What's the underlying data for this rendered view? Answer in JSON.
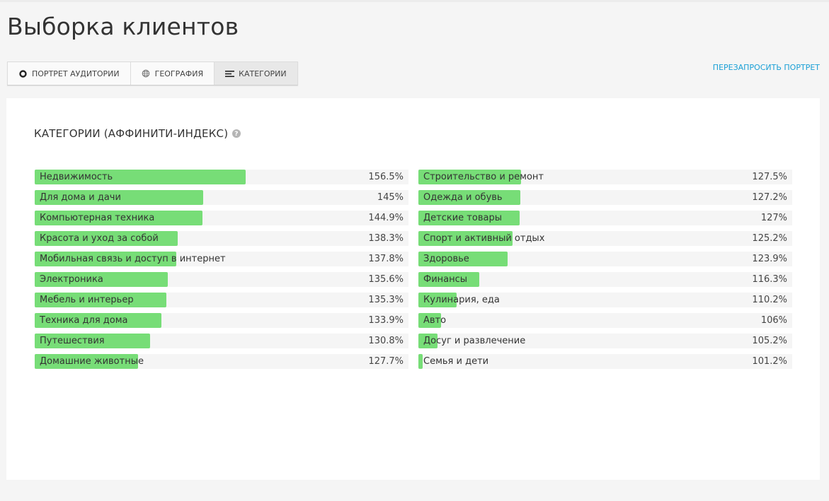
{
  "page": {
    "title": "Выборка клиентов"
  },
  "tabs": [
    {
      "label": "ПОРТРЕТ АУДИТОРИИ",
      "icon": "circle-icon",
      "active": false
    },
    {
      "label": "ГЕОГРАФИЯ",
      "icon": "globe-icon",
      "active": false
    },
    {
      "label": "КАТЕГОРИИ",
      "icon": "list-icon",
      "active": true
    }
  ],
  "requery_label": "ПЕРЕЗАПРОСИТЬ ПОРТРЕТ",
  "section": {
    "title": "КАТЕГОРИИ (АФФИНИТИ-ИНДЕКС)",
    "help_icon": "question-icon"
  },
  "colors": {
    "bar": "#77dd77",
    "link": "#1aa0d6"
  },
  "categories_left": [
    {
      "label": "Недвижимость",
      "value_text": "156.5%",
      "bar_fraction": 0.565
    },
    {
      "label": "Для дома и дачи",
      "value_text": "145%",
      "bar_fraction": 0.45
    },
    {
      "label": "Компьютерная техника",
      "value_text": "144.9%",
      "bar_fraction": 0.449
    },
    {
      "label": "Красота и уход за собой",
      "value_text": "138.3%",
      "bar_fraction": 0.383
    },
    {
      "label": "Мобильная связь и доступ в интернет",
      "value_text": "137.8%",
      "bar_fraction": 0.378
    },
    {
      "label": "Электроника",
      "value_text": "135.6%",
      "bar_fraction": 0.356
    },
    {
      "label": "Мебель и интерьер",
      "value_text": "135.3%",
      "bar_fraction": 0.353
    },
    {
      "label": "Техника для дома",
      "value_text": "133.9%",
      "bar_fraction": 0.339
    },
    {
      "label": "Путешествия",
      "value_text": "130.8%",
      "bar_fraction": 0.308
    },
    {
      "label": "Домашние животные",
      "value_text": "127.7%",
      "bar_fraction": 0.277
    }
  ],
  "categories_right": [
    {
      "label": "Строительство и ремонт",
      "value_text": "127.5%",
      "bar_fraction": 0.275
    },
    {
      "label": "Одежда и обувь",
      "value_text": "127.2%",
      "bar_fraction": 0.272
    },
    {
      "label": "Детские товары",
      "value_text": "127%",
      "bar_fraction": 0.27
    },
    {
      "label": "Спорт и активный отдых",
      "value_text": "125.2%",
      "bar_fraction": 0.252
    },
    {
      "label": "Здоровье",
      "value_text": "123.9%",
      "bar_fraction": 0.239
    },
    {
      "label": "Финансы",
      "value_text": "116.3%",
      "bar_fraction": 0.163
    },
    {
      "label": "Кулинария, еда",
      "value_text": "110.2%",
      "bar_fraction": 0.102
    },
    {
      "label": "Авто",
      "value_text": "106%",
      "bar_fraction": 0.06
    },
    {
      "label": "Досуг и развлечение",
      "value_text": "105.2%",
      "bar_fraction": 0.052
    },
    {
      "label": "Семья и дети",
      "value_text": "101.2%",
      "bar_fraction": 0.012
    }
  ]
}
